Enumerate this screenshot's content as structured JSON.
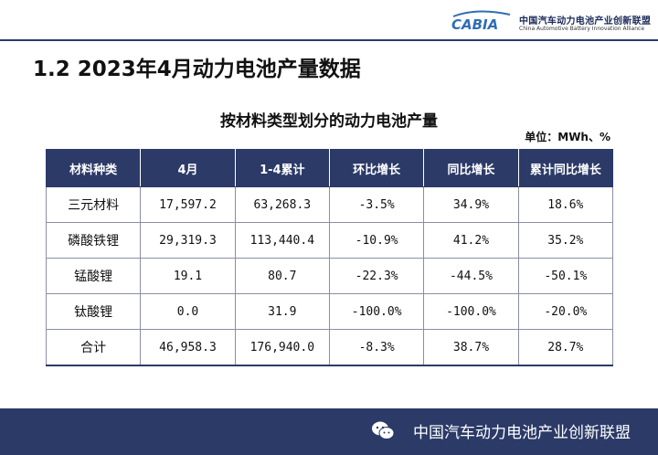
{
  "header": {
    "logo_text": "CABIA",
    "org_cn": "中国汽车动力电池产业创新联盟",
    "org_en": "China Automotive Battery Innovation Alliance"
  },
  "page_title": "1.2  2023年4月动力电池产量数据",
  "table_title": "按材料类型划分的动力电池产量",
  "unit": "单位：MWh、%",
  "table": {
    "headers": [
      "材料种类",
      "4月",
      "1-4累计",
      "环比增长",
      "同比增长",
      "累计同比增长"
    ],
    "rows": [
      [
        "三元材料",
        "17,597.2",
        "63,268.3",
        "-3.5%",
        "34.9%",
        "18.6%"
      ],
      [
        "磷酸铁锂",
        "29,319.3",
        "113,440.4",
        "-10.9%",
        "41.2%",
        "35.2%"
      ],
      [
        "锰酸锂",
        "19.1",
        "80.7",
        "-22.3%",
        "-44.5%",
        "-50.1%"
      ],
      [
        "钛酸锂",
        "0.0",
        "31.9",
        "-100.0%",
        "-100.0%",
        "-20.0%"
      ],
      [
        "合计",
        "46,958.3",
        "176,940.0",
        "-8.3%",
        "38.7%",
        "28.7%"
      ]
    ]
  },
  "footer": {
    "icon": "wechat-icon",
    "text": "中国汽车动力电池产业创新联盟"
  }
}
